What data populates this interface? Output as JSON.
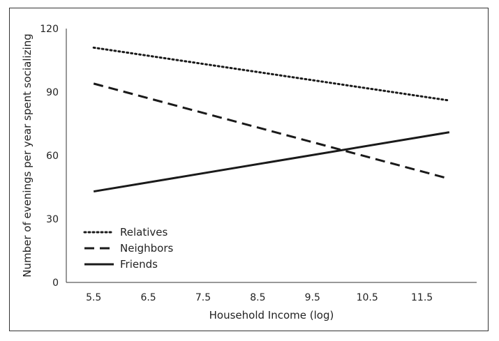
{
  "chart_data": {
    "type": "line",
    "title": "",
    "xlabel": "Household Income (log)",
    "ylabel": "Number of evenings per year spent socializing",
    "x_ticks": [
      "5.5",
      "6.5",
      "7.5",
      "8.5",
      "9.5",
      "10.5",
      "11.5"
    ],
    "y_ticks": [
      "0",
      "30",
      "60",
      "90",
      "120"
    ],
    "xlim": [
      5.0,
      12.5
    ],
    "ylim": [
      0,
      120
    ],
    "grid": false,
    "legend_position": "bottom-left",
    "series": [
      {
        "name": "Relatives",
        "style": "dotted",
        "color": "#1a1a1a",
        "x": [
          5.5,
          12.0
        ],
        "y": [
          111,
          86
        ]
      },
      {
        "name": "Neighbors",
        "style": "dashed",
        "color": "#1a1a1a",
        "x": [
          5.5,
          12.0
        ],
        "y": [
          94,
          49
        ]
      },
      {
        "name": "Friends",
        "style": "solid",
        "color": "#1a1a1a",
        "x": [
          5.5,
          12.0
        ],
        "y": [
          43,
          71
        ]
      }
    ]
  }
}
